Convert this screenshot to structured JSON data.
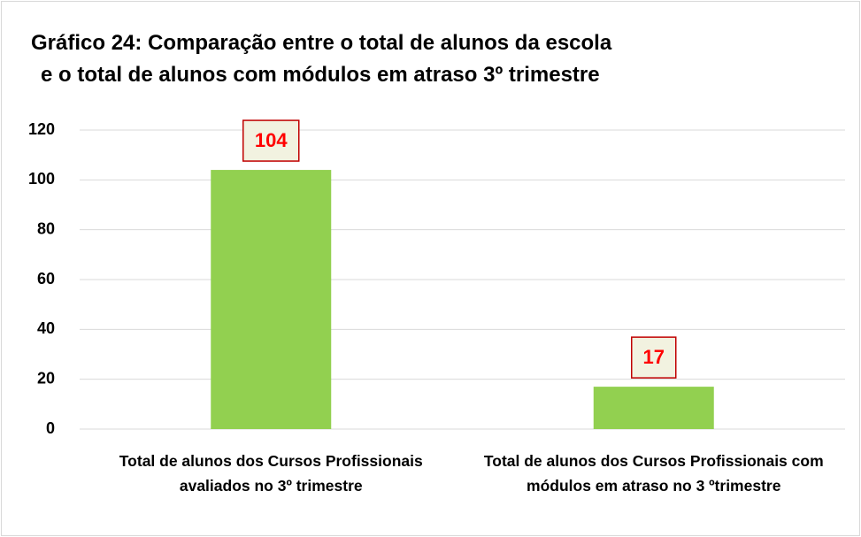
{
  "chart_data": {
    "type": "bar",
    "title": [
      "Gráfico 24: Comparação entre o total de alunos da escola",
      "e o total de alunos com módulos em atraso 3º trimestre"
    ],
    "categories": [
      "Total de alunos dos Cursos Profissionais avaliados no 3º trimestre",
      "Total de alunos dos Cursos Profissionais com módulos em atraso no 3 ºtrimestre"
    ],
    "values": [
      104,
      17
    ],
    "color": "#92d050",
    "ylim": [
      0,
      120
    ],
    "yticks": [
      0,
      20,
      40,
      60,
      80,
      100,
      120
    ],
    "grid": true
  }
}
